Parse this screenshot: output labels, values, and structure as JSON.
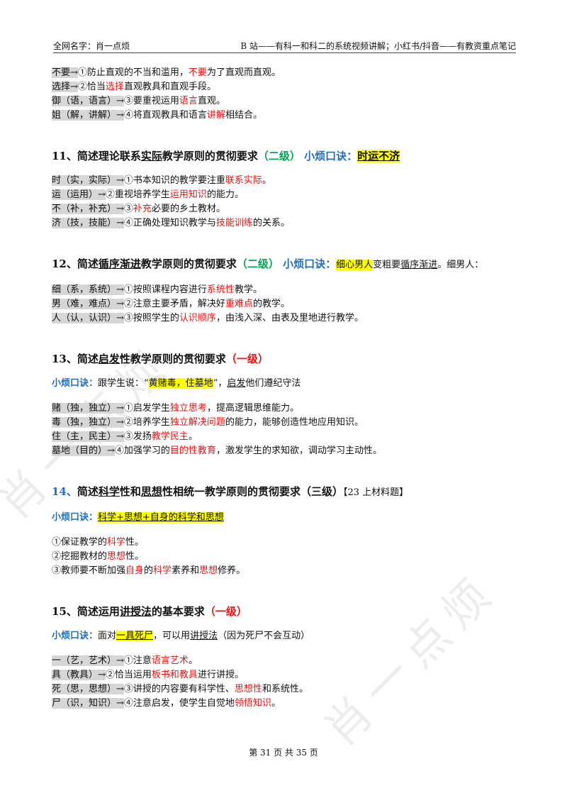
{
  "header": {
    "left": "全网名字：肖一点烦",
    "right": "B 站——有科一和科二的系统视频讲解；小红书/抖音——有教资重点笔记"
  },
  "watermark": "肖一点烦",
  "footer": "第 31 页 共 35 页",
  "paragraphs": [
    {
      "kind": "line",
      "spans": [
        {
          "text": "不要→",
          "style": "gray"
        },
        {
          "text": "①防止直观的不当和滥用，"
        },
        {
          "text": "不要",
          "style": "red"
        },
        {
          "text": "为了直观而直观。"
        }
      ]
    },
    {
      "kind": "line",
      "spans": [
        {
          "text": "选择→",
          "style": "gray"
        },
        {
          "text": "②恰当"
        },
        {
          "text": "选择",
          "style": "red"
        },
        {
          "text": "直观教具和直观手段。"
        }
      ]
    },
    {
      "kind": "line",
      "spans": [
        {
          "text": "御（语，语言）→",
          "style": "gray"
        },
        {
          "text": "③要重视运用"
        },
        {
          "text": "语言",
          "style": "red"
        },
        {
          "text": "直观。"
        }
      ]
    },
    {
      "kind": "line",
      "spans": [
        {
          "text": "姐（解，讲解）→",
          "style": "gray"
        },
        {
          "text": "④将直观教具和语言"
        },
        {
          "text": "讲解",
          "style": "red"
        },
        {
          "text": "相结合。"
        }
      ]
    },
    {
      "kind": "heading",
      "spans": [
        {
          "text": "11、简述理论联系"
        },
        {
          "text": "实际",
          "style": "u"
        },
        {
          "text": "教学原则的贯彻要求"
        },
        {
          "text": "（二级）",
          "style": "green"
        },
        {
          "text": " 小烦口诀：",
          "style": "blue"
        },
        {
          "text": "时运不济",
          "style": "yellow u"
        }
      ]
    },
    {
      "kind": "line",
      "spans": [
        {
          "text": "时（实，实际）→",
          "style": "gray"
        },
        {
          "text": "①书本知识的教学要注重"
        },
        {
          "text": "联系实际",
          "style": "red"
        },
        {
          "text": "。"
        }
      ]
    },
    {
      "kind": "line",
      "spans": [
        {
          "text": "运（运用）→",
          "style": "gray"
        },
        {
          "text": "②重视培养学生"
        },
        {
          "text": "运用知识",
          "style": "red"
        },
        {
          "text": "的能力。"
        }
      ]
    },
    {
      "kind": "line",
      "spans": [
        {
          "text": "不（补，补充）→",
          "style": "gray"
        },
        {
          "text": "③"
        },
        {
          "text": "补充",
          "style": "red"
        },
        {
          "text": "必要的乡土教材。"
        }
      ]
    },
    {
      "kind": "line",
      "spans": [
        {
          "text": "济（技，技能）→",
          "style": "gray"
        },
        {
          "text": "④正确处理知识教学与"
        },
        {
          "text": "技能训练",
          "style": "red"
        },
        {
          "text": "的关系。"
        }
      ]
    },
    {
      "kind": "heading",
      "spans": [
        {
          "text": "12、简述"
        },
        {
          "text": "循序渐进",
          "style": "u"
        },
        {
          "text": "教学原则的贯彻要求"
        },
        {
          "text": "（二级）",
          "style": "green"
        },
        {
          "text": " 小烦口诀：",
          "style": "blue"
        },
        {
          "text": "细心男人",
          "style": "yellow plain"
        },
        {
          "text": "变粗要",
          "style": "plain"
        },
        {
          "text": "循序渐进",
          "style": "u plain"
        },
        {
          "text": "。细男人：",
          "style": "plain"
        }
      ]
    },
    {
      "kind": "line",
      "spans": [
        {
          "text": "细（系，系统）→",
          "style": "gray"
        },
        {
          "text": "①按照课程内容进行"
        },
        {
          "text": "系统性",
          "style": "red"
        },
        {
          "text": "教学。"
        }
      ]
    },
    {
      "kind": "line",
      "spans": [
        {
          "text": "男（难，难点）→",
          "style": "gray"
        },
        {
          "text": "②注意主要矛盾，解决好"
        },
        {
          "text": "重难点",
          "style": "red"
        },
        {
          "text": "的教学。"
        }
      ]
    },
    {
      "kind": "line",
      "spans": [
        {
          "text": "人（认，认识）→",
          "style": "gray"
        },
        {
          "text": "③按照学生的"
        },
        {
          "text": "认识顺序",
          "style": "red"
        },
        {
          "text": "，由浅入深、由表及里地进行教学。"
        }
      ]
    },
    {
      "kind": "heading",
      "spans": [
        {
          "text": "13、简述"
        },
        {
          "text": "启发",
          "style": "u"
        },
        {
          "text": "性教学原则的贯彻要求"
        },
        {
          "text": "（一级）",
          "style": "red"
        }
      ]
    },
    {
      "kind": "mnemonic",
      "spans": [
        {
          "text": "小烦口诀：",
          "style": "blue bold"
        },
        {
          "text": "跟学生说：“"
        },
        {
          "text": "黄赌毒，住墓地",
          "style": "yellow"
        },
        {
          "text": "”，"
        },
        {
          "text": "启发",
          "style": "u"
        },
        {
          "text": "他们遵纪守法"
        }
      ]
    },
    {
      "kind": "line",
      "spans": [
        {
          "text": "赌（独，独立）→",
          "style": "gray"
        },
        {
          "text": "①启发学生"
        },
        {
          "text": "独立思考",
          "style": "red"
        },
        {
          "text": "，提高逻辑思维能力。"
        }
      ]
    },
    {
      "kind": "line",
      "spans": [
        {
          "text": "毒（独，独立）→",
          "style": "gray"
        },
        {
          "text": "②培养学生"
        },
        {
          "text": "独立解决问题",
          "style": "red"
        },
        {
          "text": "的能力，能够创造性地应用知识。"
        }
      ]
    },
    {
      "kind": "line",
      "spans": [
        {
          "text": "住（主，民主）→",
          "style": "gray"
        },
        {
          "text": "③发扬"
        },
        {
          "text": "教学民主",
          "style": "red"
        },
        {
          "text": "。"
        }
      ]
    },
    {
      "kind": "line",
      "spans": [
        {
          "text": "墓地（目的）→",
          "style": "gray"
        },
        {
          "text": "④加强学习的"
        },
        {
          "text": "目的性教育",
          "style": "red"
        },
        {
          "text": "，激发学生的求知欲，调动学习主动性。"
        }
      ]
    },
    {
      "kind": "heading",
      "spans": [
        {
          "text": "14、",
          "style": "blue"
        },
        {
          "text": "简述"
        },
        {
          "text": "科学",
          "style": "u"
        },
        {
          "text": "性和"
        },
        {
          "text": "思想",
          "style": "u"
        },
        {
          "text": "性相统一教学原则的贯彻要求（三级）"
        },
        {
          "text": "【23 上材料题】",
          "style": "plain"
        }
      ]
    },
    {
      "kind": "mnemonic",
      "spans": [
        {
          "text": "小烦口诀：",
          "style": "blue bold"
        },
        {
          "text": "科学+思想+自身的科学和思想",
          "style": "yellow u"
        }
      ]
    },
    {
      "kind": "line",
      "spans": [
        {
          "text": "①保证教学的"
        },
        {
          "text": "科学",
          "style": "red"
        },
        {
          "text": "性。"
        }
      ]
    },
    {
      "kind": "line",
      "spans": [
        {
          "text": "②挖掘教材的"
        },
        {
          "text": "思想",
          "style": "red"
        },
        {
          "text": "性。"
        }
      ]
    },
    {
      "kind": "line",
      "spans": [
        {
          "text": "③教师要不断加强"
        },
        {
          "text": "自身",
          "style": "red"
        },
        {
          "text": "的"
        },
        {
          "text": "科学",
          "style": "red"
        },
        {
          "text": "素养和"
        },
        {
          "text": "思想",
          "style": "red"
        },
        {
          "text": "修养。"
        }
      ]
    },
    {
      "kind": "heading",
      "spans": [
        {
          "text": "15、简述运用"
        },
        {
          "text": "讲授法",
          "style": "u"
        },
        {
          "text": "的基本要求"
        },
        {
          "text": "（一级）",
          "style": "red"
        }
      ]
    },
    {
      "kind": "mnemonic",
      "spans": [
        {
          "text": "小烦口诀：",
          "style": "blue bold"
        },
        {
          "text": "面对"
        },
        {
          "text": "一具死尸",
          "style": "yellow u"
        },
        {
          "text": "，可以用"
        },
        {
          "text": "讲授法",
          "style": "u"
        },
        {
          "text": "（因为死尸不会互动）"
        }
      ]
    },
    {
      "kind": "line",
      "spans": [
        {
          "text": "一（艺，艺术）→",
          "style": "gray"
        },
        {
          "text": "①注意"
        },
        {
          "text": "语言艺术",
          "style": "red"
        },
        {
          "text": "。"
        }
      ]
    },
    {
      "kind": "line",
      "spans": [
        {
          "text": "具（教具）→",
          "style": "gray"
        },
        {
          "text": "②恰当运用"
        },
        {
          "text": "板书和教具",
          "style": "red"
        },
        {
          "text": "进行讲授。"
        }
      ]
    },
    {
      "kind": "line",
      "spans": [
        {
          "text": "死（思，思想）→",
          "style": "gray"
        },
        {
          "text": "③讲授的内容要有科学性、"
        },
        {
          "text": "思想性",
          "style": "red"
        },
        {
          "text": "和系统性。"
        }
      ]
    },
    {
      "kind": "line",
      "spans": [
        {
          "text": "尸（识，知识）→",
          "style": "gray"
        },
        {
          "text": "④注意启发，使学生自觉地"
        },
        {
          "text": "领悟知识",
          "style": "red"
        },
        {
          "text": "。"
        }
      ]
    }
  ]
}
